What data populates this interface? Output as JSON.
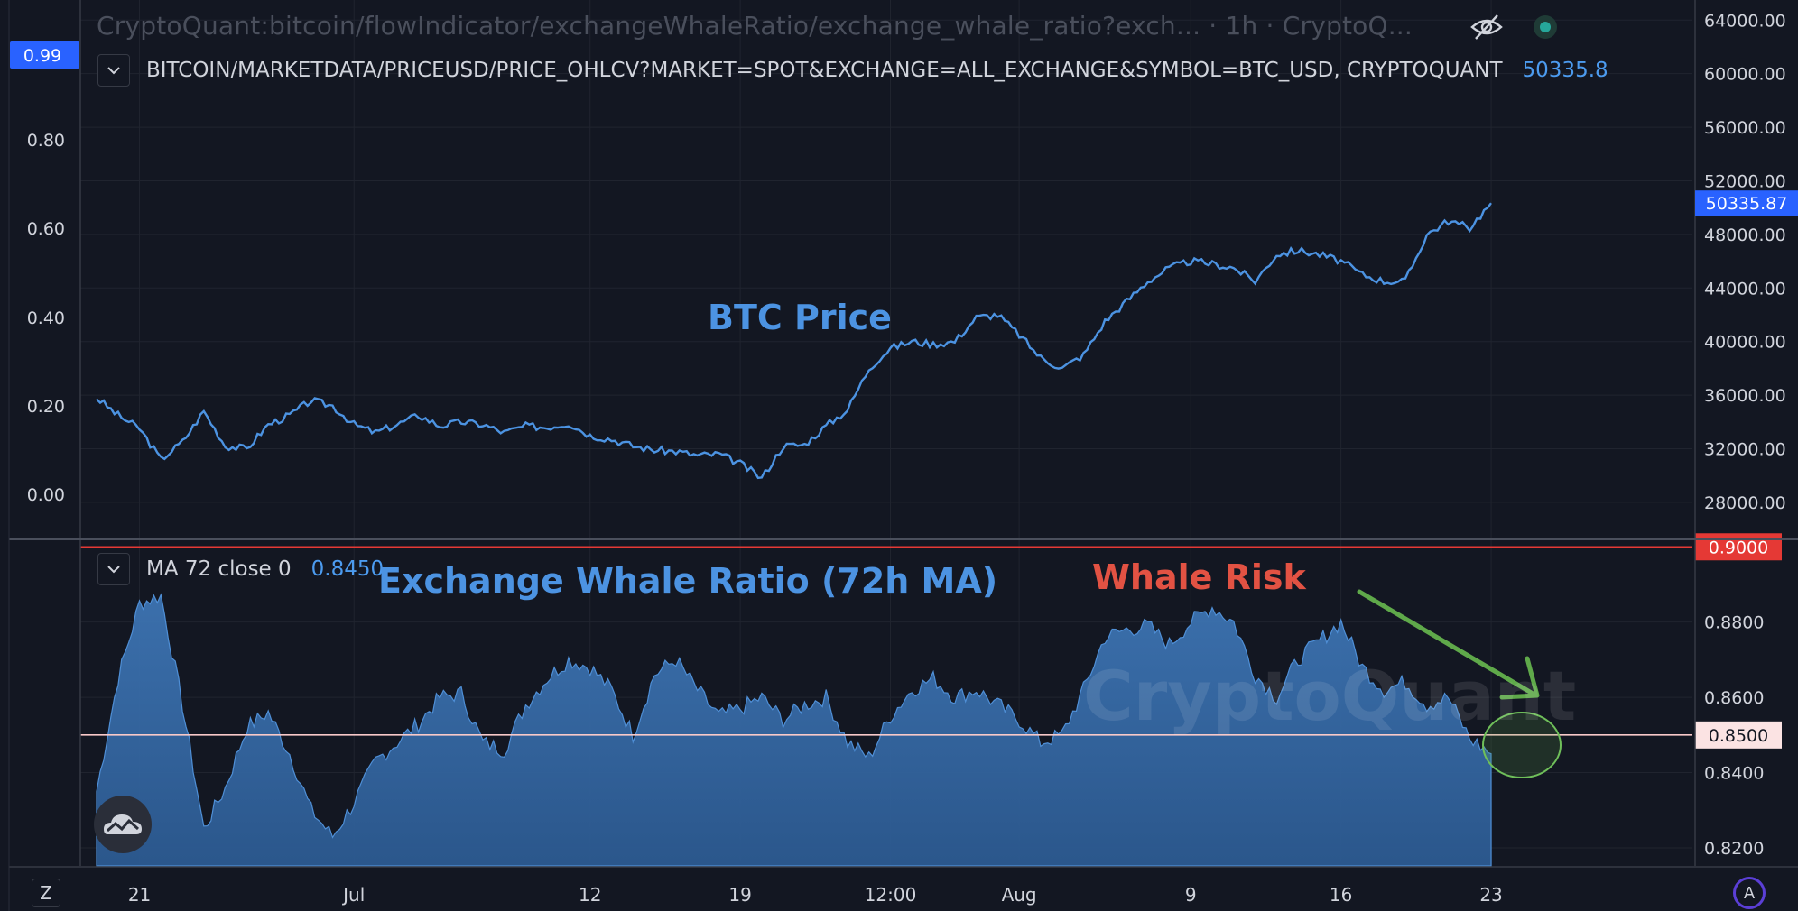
{
  "header": {
    "title": "CryptoQuant:bitcoin/flowIndicator/exchangeWhaleRatio/exchange_whale_ratio?exch... · 1h · CryptoQ..."
  },
  "top_pane": {
    "legend_label": "BITCOIN/MARKETDATA/PRICEUSD/PRICE_OHLCV?MARKET=SPOT&EXCHANGE=ALL_EXCHANGE&SYMBOL=BTC_USD, CRYPTOQUANT",
    "legend_value": "50335.8",
    "annotation": "BTC Price"
  },
  "bottom_pane": {
    "legend_label": "MA 72 close 0",
    "legend_value": "0.8450",
    "annotation_series": "Exchange Whale Ratio (72h MA)",
    "annotation_risk": "Whale Risk"
  },
  "watermark": "CryptoQuant",
  "buttons": {
    "zoom_label": "Z",
    "auto_label": "A"
  },
  "colors": {
    "background": "#131722",
    "price_line": "#4c93e2",
    "area_fill": "#3b6ea8",
    "risk_line": "#e53935",
    "threshold_line": "#f8c9c9",
    "arrow": "#5fa94a"
  },
  "chart_data": [
    {
      "type": "line",
      "series": [
        {
          "name": "BTC Price",
          "x": [
            "Jun 19",
            "Jun 20",
            "Jun 21",
            "Jun 22",
            "Jun 23",
            "Jun 24",
            "Jun 25",
            "Jun 26",
            "Jun 27",
            "Jun 28",
            "Jun 29",
            "Jun 30",
            "Jul 1",
            "Jul 2",
            "Jul 3",
            "Jul 4",
            "Jul 5",
            "Jul 6",
            "Jul 7",
            "Jul 8",
            "Jul 9",
            "Jul 10",
            "Jul 11",
            "Jul 12",
            "Jul 13",
            "Jul 14",
            "Jul 15",
            "Jul 16",
            "Jul 17",
            "Jul 18",
            "Jul 19",
            "Jul 20",
            "Jul 21",
            "Jul 22",
            "Jul 23",
            "Jul 24",
            "Jul 25",
            "Jul 26",
            "Jul 27",
            "Jul 28",
            "Jul 29",
            "Jul 30",
            "Jul 31",
            "Aug 1",
            "Aug 2",
            "Aug 3",
            "Aug 4",
            "Aug 5",
            "Aug 6",
            "Aug 7",
            "Aug 8",
            "Aug 9",
            "Aug 10",
            "Aug 11",
            "Aug 12",
            "Aug 13",
            "Aug 14",
            "Aug 15",
            "Aug 16",
            "Aug 17",
            "Aug 18",
            "Aug 19",
            "Aug 20",
            "Aug 21",
            "Aug 22",
            "Aug 23"
          ],
          "values": [
            35800,
            34500,
            33500,
            31200,
            32500,
            34800,
            32200,
            32000,
            33800,
            34500,
            35600,
            35200,
            33800,
            33200,
            33800,
            34500,
            33700,
            34000,
            33800,
            33200,
            33700,
            33600,
            33900,
            33000,
            32700,
            32200,
            31900,
            31800,
            31500,
            31600,
            30900,
            29800,
            32200,
            32300,
            33700,
            34900,
            38000,
            39500,
            40000,
            39800,
            40000,
            41800,
            42000,
            40500,
            38800,
            38000,
            39000,
            41500,
            43000,
            44500,
            45500,
            46000,
            45800,
            45500,
            44500,
            46500,
            46800,
            46500,
            46000,
            45000,
            44500,
            44500,
            48000,
            49000,
            48500,
            50335.87
          ]
        }
      ],
      "y_axis": {
        "side": "right",
        "ticks": [
          28000,
          32000,
          36000,
          40000,
          44000,
          48000,
          52000,
          56000,
          60000,
          64000
        ],
        "tick_labels": [
          "28000.00",
          "32000.00",
          "36000.00",
          "40000.00",
          "44000.00",
          "48000.00",
          "52000.00",
          "56000.00",
          "60000.00",
          "64000.00"
        ],
        "ylim": [
          25300,
          65500
        ],
        "last_value_label": "50335.87"
      },
      "left_axis": {
        "tick_labels": [
          "0.00",
          "0.20",
          "0.40",
          "0.60",
          "0.80"
        ],
        "highlight_label": "0.99"
      },
      "grid": true
    },
    {
      "type": "area",
      "series": [
        {
          "name": "MA 72 close 0",
          "x": [
            "Jun 19",
            "Jun 20",
            "Jun 21",
            "Jun 22",
            "Jun 23",
            "Jun 24",
            "Jun 25",
            "Jun 26",
            "Jun 27",
            "Jun 28",
            "Jun 29",
            "Jun 30",
            "Jul 1",
            "Jul 2",
            "Jul 3",
            "Jul 4",
            "Jul 5",
            "Jul 6",
            "Jul 7",
            "Jul 8",
            "Jul 9",
            "Jul 10",
            "Jul 11",
            "Jul 12",
            "Jul 13",
            "Jul 14",
            "Jul 15",
            "Jul 16",
            "Jul 17",
            "Jul 18",
            "Jul 19",
            "Jul 20",
            "Jul 21",
            "Jul 22",
            "Jul 23",
            "Jul 24",
            "Jul 25",
            "Jul 26",
            "Jul 27",
            "Jul 28",
            "Jul 29",
            "Jul 30",
            "Jul 31",
            "Aug 1",
            "Aug 2",
            "Aug 3",
            "Aug 4",
            "Aug 5",
            "Aug 6",
            "Aug 7",
            "Aug 8",
            "Aug 9",
            "Aug 10",
            "Aug 11",
            "Aug 12",
            "Aug 13",
            "Aug 14",
            "Aug 15",
            "Aug 16",
            "Aug 17",
            "Aug 18",
            "Aug 19",
            "Aug 20",
            "Aug 21",
            "Aug 22",
            "Aug 23"
          ],
          "values": [
            0.835,
            0.865,
            0.885,
            0.887,
            0.858,
            0.825,
            0.836,
            0.852,
            0.856,
            0.845,
            0.83,
            0.823,
            0.832,
            0.843,
            0.848,
            0.853,
            0.86,
            0.861,
            0.848,
            0.846,
            0.858,
            0.865,
            0.87,
            0.868,
            0.862,
            0.85,
            0.866,
            0.87,
            0.862,
            0.855,
            0.857,
            0.86,
            0.854,
            0.858,
            0.86,
            0.848,
            0.844,
            0.855,
            0.862,
            0.865,
            0.86,
            0.862,
            0.858,
            0.854,
            0.848,
            0.85,
            0.862,
            0.876,
            0.878,
            0.879,
            0.874,
            0.88,
            0.884,
            0.88,
            0.866,
            0.86,
            0.87,
            0.875,
            0.88,
            0.868,
            0.862,
            0.864,
            0.858,
            0.86,
            0.849,
            0.845
          ]
        }
      ],
      "y_axis": {
        "side": "right",
        "ticks": [
          0.82,
          0.84,
          0.86,
          0.88
        ],
        "tick_labels": [
          "0.8200",
          "0.8400",
          "0.8600",
          "0.8800"
        ],
        "ylim": [
          0.8152,
          0.9015
        ]
      },
      "reference_lines": [
        {
          "value": 0.9,
          "label": "0.9000",
          "color": "#e53935"
        },
        {
          "value": 0.85,
          "label": "0.8500",
          "color": "#f8c9c9"
        }
      ],
      "grid": true
    }
  ],
  "x_axis": {
    "tick_labels": [
      "21",
      "Jul",
      "12",
      "19",
      "12:00",
      "Aug",
      "9",
      "16",
      "23"
    ],
    "tick_positions": [
      "Jun 21",
      "Jul 1",
      "Jul 12",
      "Jul 19",
      "Jul 26",
      "Aug 1",
      "Aug 9",
      "Aug 16",
      "Aug 23"
    ]
  }
}
